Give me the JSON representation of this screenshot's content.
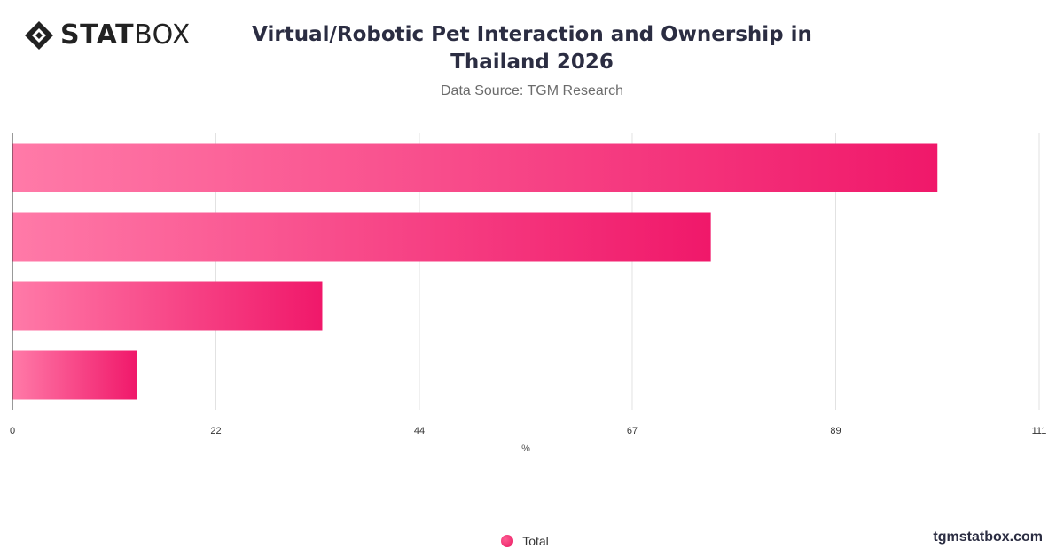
{
  "brand": {
    "logo_bold": "STAT",
    "logo_light": "BOX",
    "website": "tgmstatbox.com"
  },
  "header": {
    "title": "Virtual/Robotic Pet Interaction and Ownership in Thailand 2026",
    "subtitle": "Data Source: TGM Research"
  },
  "legend": {
    "items": [
      {
        "label": "Total",
        "color": "#f0216a"
      }
    ]
  },
  "chart_data": {
    "type": "bar",
    "orientation": "horizontal",
    "title": "Virtual/Robotic Pet Interaction and Ownership in Thailand 2026",
    "xlabel": "%",
    "ylabel": "",
    "xlim": [
      0,
      111
    ],
    "x_ticks": [
      0,
      22,
      44,
      67,
      89,
      111
    ],
    "categories": [
      "",
      "",
      "",
      ""
    ],
    "series": [
      {
        "name": "Total",
        "values": [
          100,
          75.5,
          33.5,
          13.5
        ]
      }
    ],
    "grid": true,
    "legend_position": "bottom-center",
    "colors": {
      "bar_start": "#ff7aa8",
      "bar_end": "#f0186a",
      "grid": "#e2e2e2",
      "axis": "#333333"
    }
  }
}
